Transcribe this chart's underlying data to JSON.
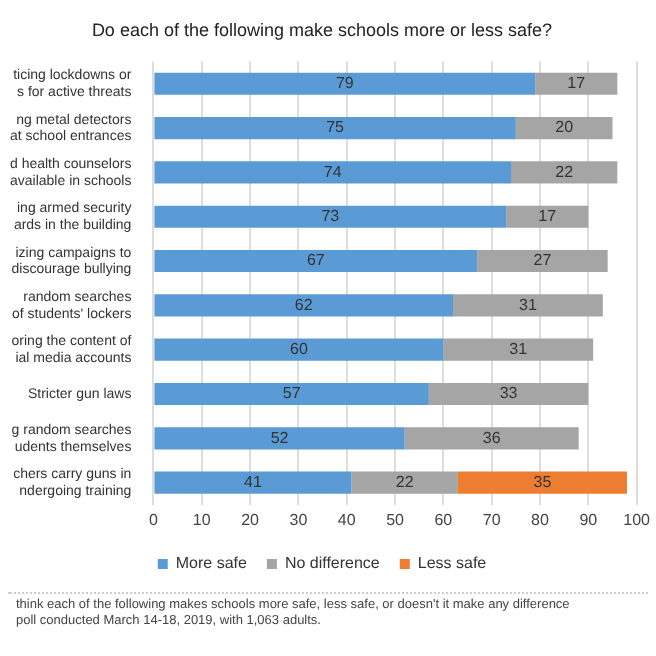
{
  "chart_data": {
    "type": "bar",
    "orientation": "horizontal",
    "stacked": true,
    "title": "Do each of the following make schools more or less safe?",
    "categories": [
      "ticing lockdowns or\ns for active threats",
      "ng metal detectors\nat school entrances",
      "d health counselors\navailable in schools",
      "ing armed security\nards in the building",
      "izing campaigns to\ndiscourage bullying",
      "random searches\nof students' lockers",
      "oring the content of\nial media accounts",
      "Stricter gun laws",
      "g random searches\nudents themselves",
      "chers carry guns in\nndergoing training"
    ],
    "series": [
      {
        "name": "More safe",
        "color": "#5b9bd5",
        "values": [
          79,
          75,
          74,
          73,
          67,
          62,
          60,
          57,
          52,
          41
        ]
      },
      {
        "name": "No difference",
        "color": "#a5a5a5",
        "values": [
          17,
          20,
          22,
          17,
          27,
          31,
          31,
          33,
          36,
          22
        ]
      },
      {
        "name": "Less safe",
        "color": "#ed7d31",
        "values": [
          null,
          null,
          null,
          null,
          null,
          null,
          null,
          null,
          null,
          35
        ]
      }
    ],
    "xlim": [
      0,
      100
    ],
    "xticks": [
      0,
      10,
      20,
      30,
      40,
      50,
      60,
      70,
      80,
      90,
      100
    ],
    "grid": "x",
    "legend": "bottom",
    "data_labels": true,
    "annotations": [
      "think each of the following makes schools more safe, less safe, or doesn't it make any difference",
      "poll conducted March 14-18, 2019, with 1,063 adults."
    ]
  }
}
